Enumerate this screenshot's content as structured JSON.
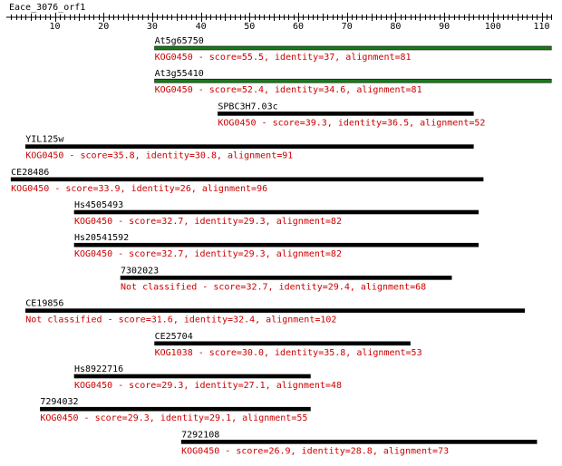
{
  "query": {
    "name": "Eace_3076_orf1",
    "length": 112,
    "ticks": [
      10,
      20,
      30,
      40,
      50,
      60,
      70,
      80,
      90,
      100,
      110
    ]
  },
  "colors": {
    "bar_default": "#000000",
    "bar_top": "#1a7a1a",
    "label_text": "#000000",
    "info_text": "#cc0000",
    "axis": "#000000"
  },
  "hits": [
    {
      "name": "At5g65750",
      "kog": "KOG0450",
      "score": "55.5",
      "identity": "37",
      "alignment": "81",
      "start": 30.5,
      "end": 112,
      "top": true
    },
    {
      "name": "At3g55410",
      "kog": "KOG0450",
      "score": "52.4",
      "identity": "34.6",
      "alignment": "81",
      "start": 30.5,
      "end": 112,
      "top": true
    },
    {
      "name": "SPBC3H7.03c",
      "kog": "KOG0450",
      "score": "39.3",
      "identity": "36.5",
      "alignment": "52",
      "start": 43.5,
      "end": 96,
      "top": false
    },
    {
      "name": "YIL125w",
      "kog": "KOG0450",
      "score": "35.8",
      "identity": "30.8",
      "alignment": "91",
      "start": 4,
      "end": 96,
      "top": false
    },
    {
      "name": "CE28486",
      "kog": "KOG0450",
      "score": "33.9",
      "identity": "26",
      "alignment": "96",
      "start": 1,
      "end": 98,
      "top": false
    },
    {
      "name": "Hs4505493",
      "kog": "KOG0450",
      "score": "32.7",
      "identity": "29.3",
      "alignment": "82",
      "start": 14,
      "end": 97,
      "top": false
    },
    {
      "name": "Hs20541592",
      "kog": "KOG0450",
      "score": "32.7",
      "identity": "29.3",
      "alignment": "82",
      "start": 14,
      "end": 97,
      "top": false
    },
    {
      "name": "7302023",
      "kog": "Not classified",
      "score": "32.7",
      "identity": "29.4",
      "alignment": "68",
      "start": 23.5,
      "end": 91.5,
      "top": false
    },
    {
      "name": "CE19856",
      "kog": "Not classified",
      "score": "31.6",
      "identity": "32.4",
      "alignment": "102",
      "start": 4,
      "end": 106.5,
      "top": false
    },
    {
      "name": "CE25704",
      "kog": "KOG1038",
      "score": "30.0",
      "identity": "35.8",
      "alignment": "53",
      "start": 30.5,
      "end": 83,
      "top": false
    },
    {
      "name": "Hs8922716",
      "kog": "KOG0450",
      "score": "29.3",
      "identity": "27.1",
      "alignment": "48",
      "start": 14,
      "end": 62.5,
      "top": false
    },
    {
      "name": "7294032",
      "kog": "KOG0450",
      "score": "29.3",
      "identity": "29.1",
      "alignment": "55",
      "start": 7,
      "end": 62.5,
      "top": false
    },
    {
      "name": "7292108",
      "kog": "KOG0450",
      "score": "26.9",
      "identity": "28.8",
      "alignment": "73",
      "start": 36,
      "end": 109,
      "top": false
    }
  ]
}
